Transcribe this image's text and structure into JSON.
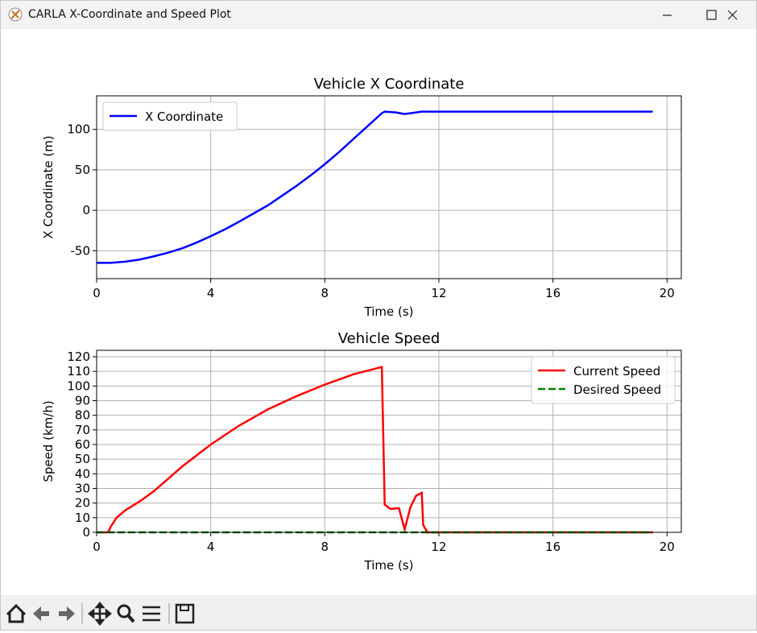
{
  "window_title": "CARLA X-Coordinate and Speed Plot",
  "chart_data": [
    {
      "type": "line",
      "title": "Vehicle X Coordinate",
      "x_label": "Time (s)",
      "y_label": "X Coordinate (m)",
      "x": [
        0,
        0.5,
        1,
        1.5,
        2,
        2.5,
        3,
        3.5,
        4,
        4.5,
        5,
        5.5,
        6,
        6.5,
        7,
        7.5,
        8,
        8.5,
        9,
        9.5,
        10,
        10.1,
        10.5,
        10.8,
        11,
        11.4,
        12,
        14,
        16,
        18,
        19.5
      ],
      "series": [
        {
          "name": "X Coordinate",
          "color": "#0000ff",
          "linestyle": "solid",
          "values": [
            -65,
            -65,
            -63.5,
            -61,
            -57,
            -52.5,
            -47,
            -40,
            -32,
            -23.5,
            -14,
            -4,
            6,
            18,
            30,
            43,
            57,
            72,
            88,
            104,
            120,
            122,
            121,
            119,
            120,
            122,
            122,
            122,
            122,
            122,
            122
          ]
        }
      ],
      "xlim": [
        0,
        20.5
      ],
      "ylim": [
        -84.5,
        141.5
      ],
      "xticks": [
        0,
        4,
        8,
        12,
        16,
        20
      ],
      "yticks": [
        -50,
        0,
        50,
        100
      ],
      "grid": true,
      "legend": "upper-left"
    },
    {
      "type": "line",
      "title": "Vehicle Speed",
      "x_label": "Time (s)",
      "y_label": "Speed (km/h)",
      "x": [
        0,
        0.4,
        0.5,
        0.7,
        1,
        1.5,
        2,
        3,
        4,
        5,
        6,
        7,
        8,
        9,
        10,
        10.1,
        10.3,
        10.6,
        10.8,
        11,
        11.2,
        11.4,
        11.45,
        11.6,
        19.5
      ],
      "series": [
        {
          "name": "Current Speed",
          "color": "#ff0000",
          "linestyle": "solid",
          "values": [
            0,
            0,
            4,
            10,
            15,
            21,
            28,
            45,
            60,
            73,
            84,
            93,
            101,
            108,
            113,
            19,
            16,
            16.5,
            2,
            17,
            25,
            27,
            5,
            0,
            0
          ]
        },
        {
          "name": "Desired Speed",
          "color": "#008000",
          "linestyle": "dashed",
          "values": [
            0,
            0,
            0,
            0,
            0,
            0,
            0,
            0,
            0,
            0,
            0,
            0,
            0,
            0,
            0,
            0,
            0,
            0,
            0,
            0,
            0,
            0,
            0,
            0,
            0
          ]
        }
      ],
      "xlim": [
        0,
        20.5
      ],
      "ylim": [
        0,
        124.4
      ],
      "xticks": [
        0,
        4,
        8,
        12,
        16,
        20
      ],
      "yticks": [
        0,
        10,
        20,
        30,
        40,
        50,
        60,
        70,
        80,
        90,
        100,
        110,
        120
      ],
      "grid": true,
      "legend": "upper-right"
    }
  ]
}
